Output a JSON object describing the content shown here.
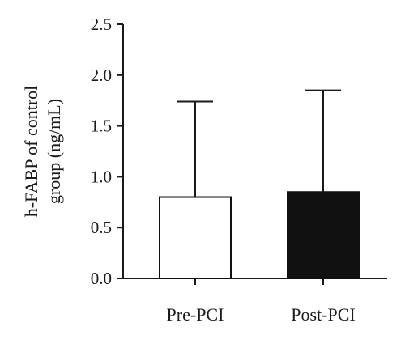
{
  "chart_data": {
    "type": "bar",
    "title": "",
    "xlabel": "",
    "ylabel_lines": [
      "h-FABP of control",
      "group (ng/mL)"
    ],
    "categories": [
      "Pre-PCI",
      "Post-PCI"
    ],
    "values": [
      0.8,
      0.85
    ],
    "error_upper": [
      1.74,
      1.85
    ],
    "bar_fill_colors": [
      "#ffffff",
      "#111111"
    ],
    "bar_stroke_color": "#111111",
    "ylim": [
      0,
      2.5
    ],
    "yticks": [
      "0.0",
      "0.5",
      "1.0",
      "1.5",
      "2.0",
      "2.5"
    ],
    "grid": false,
    "legend": "none"
  }
}
